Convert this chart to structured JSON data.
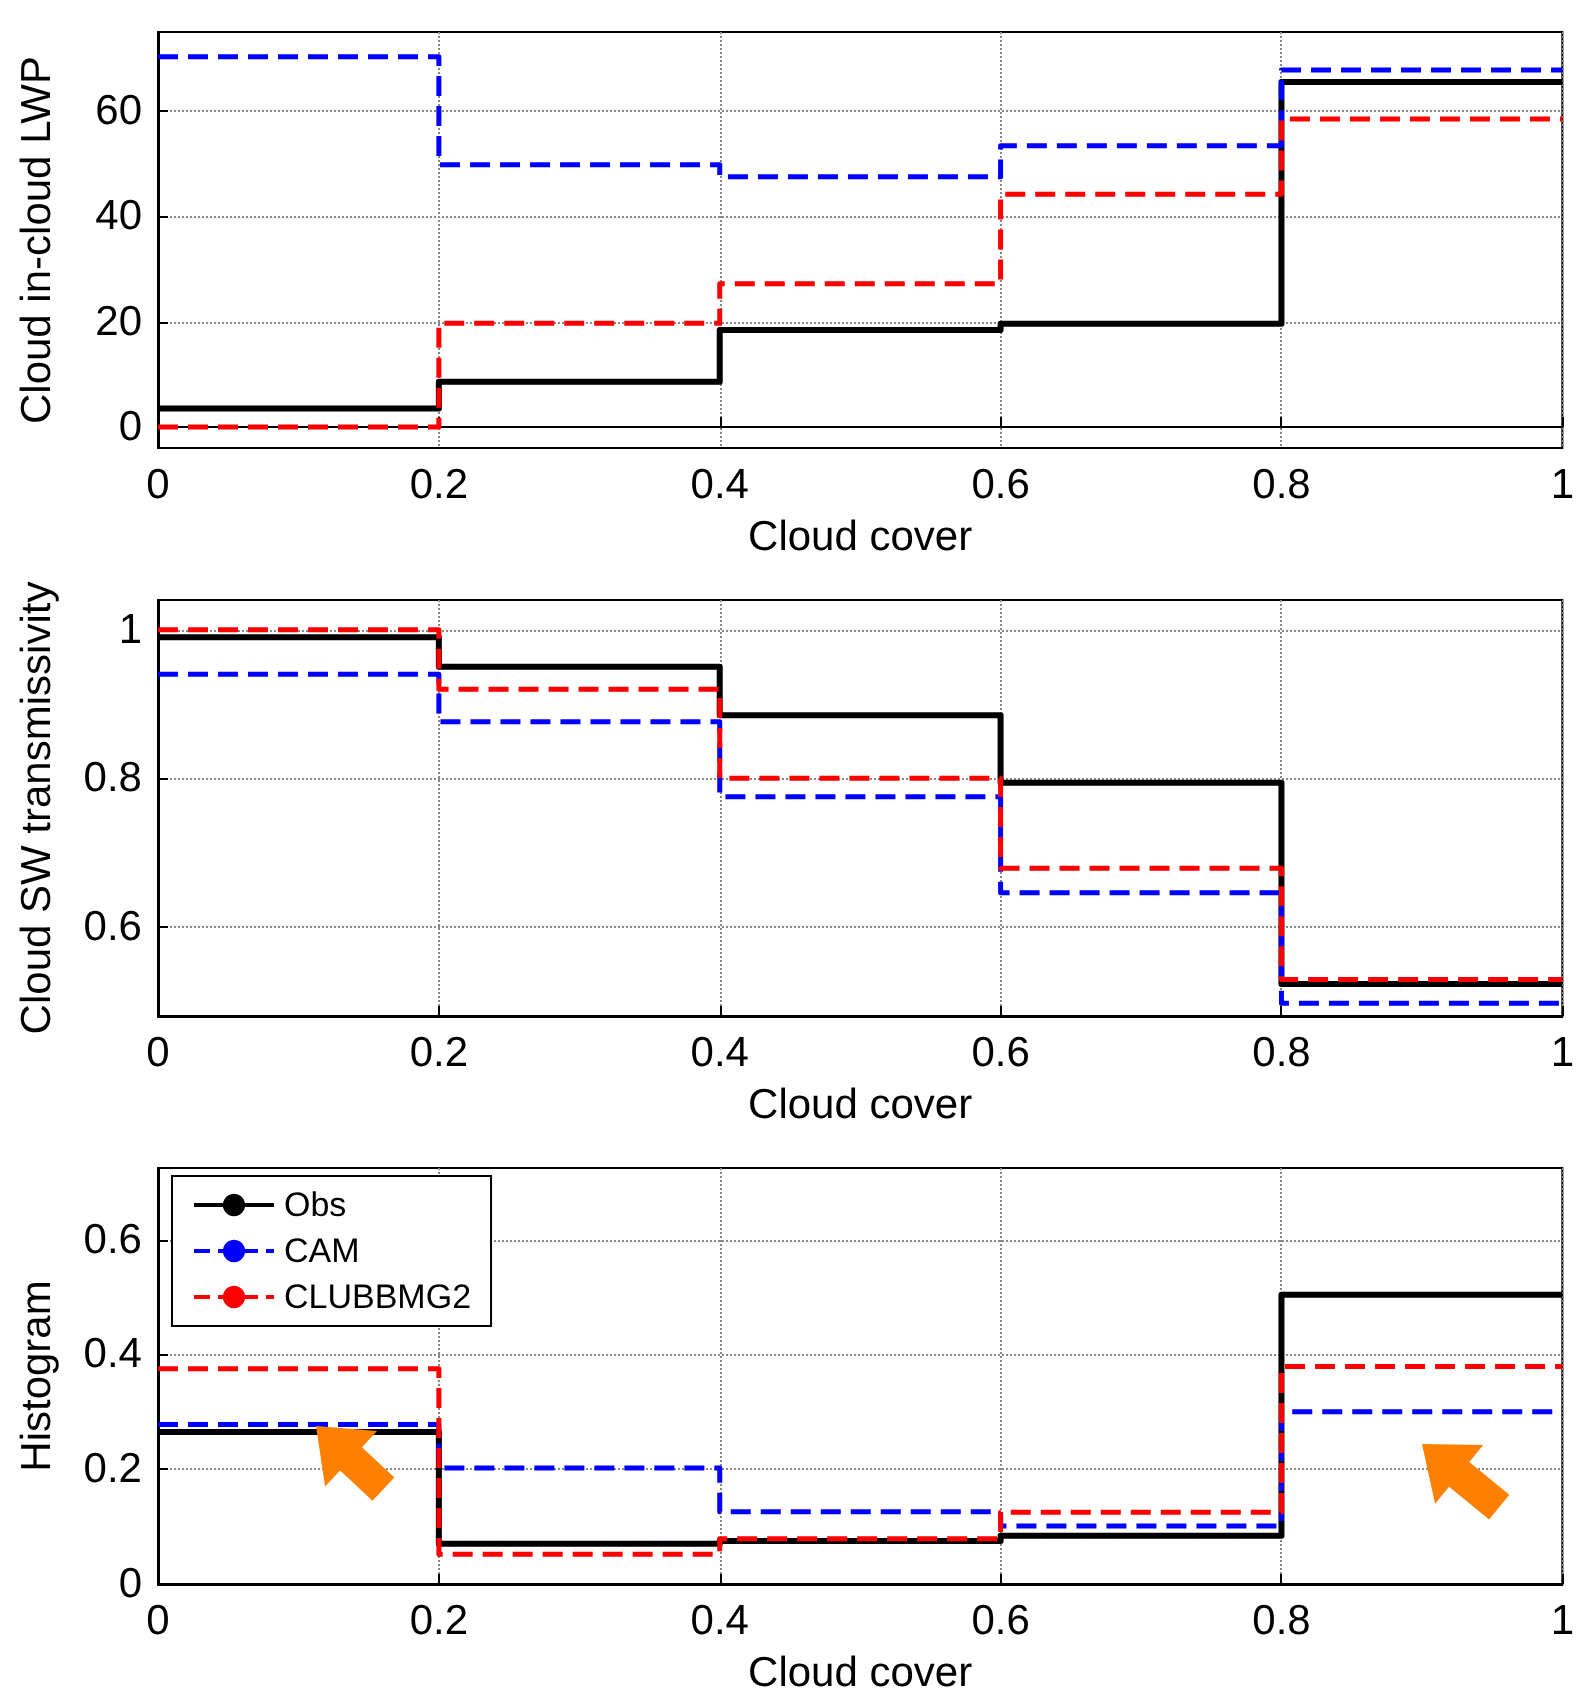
{
  "chart_data": [
    {
      "type": "step",
      "x": [
        0,
        0.2,
        0.4,
        0.6,
        0.8,
        1
      ],
      "xlabel": "Cloud cover",
      "ylabel": "Cloud in-cloud LWP",
      "xlim": [
        0,
        1
      ],
      "xticks": [
        0,
        0.2,
        0.4,
        0.6,
        0.8,
        1
      ],
      "ylim": [
        -4,
        75
      ],
      "yticks": [
        0,
        20,
        40,
        60
      ],
      "grid": true,
      "series": [
        {
          "color": "#000000",
          "line_style": "solid",
          "values": [
            3.5,
            8.6,
            18.4,
            19.6,
            65.5,
            65.5
          ]
        },
        {
          "color": "#0000ff",
          "line_style": "dashed",
          "values": [
            70.3,
            49.8,
            47.5,
            53.4,
            67.8,
            67.8
          ]
        },
        {
          "color": "#ff0000",
          "line_style": "dashed",
          "values": [
            0,
            19.7,
            27.2,
            44.2,
            58.5,
            58.5
          ]
        }
      ]
    },
    {
      "type": "step",
      "x": [
        0,
        0.2,
        0.4,
        0.6,
        0.8,
        1
      ],
      "xlabel": "Cloud cover",
      "ylabel": "Cloud SW transmissivity",
      "xlim": [
        0,
        1
      ],
      "xticks": [
        0,
        0.2,
        0.4,
        0.6,
        0.8,
        1
      ],
      "ylim": [
        0.48,
        1.04
      ],
      "yticks": [
        0.6,
        0.8,
        1
      ],
      "grid": true,
      "series": [
        {
          "color": "#000000",
          "line_style": "solid",
          "values": [
            0.99,
            0.95,
            0.885,
            0.794,
            0.523,
            0.523
          ]
        },
        {
          "color": "#0000ff",
          "line_style": "dashed",
          "values": [
            0.94,
            0.876,
            0.775,
            0.646,
            0.497,
            0.497
          ]
        },
        {
          "color": "#ff0000",
          "line_style": "dashed",
          "values": [
            1.0,
            0.92,
            0.8,
            0.679,
            0.529,
            0.529
          ]
        }
      ]
    },
    {
      "type": "step",
      "x": [
        0,
        0.2,
        0.4,
        0.6,
        0.8,
        1
      ],
      "xlabel": "Cloud cover",
      "ylabel": "Histogram",
      "xlim": [
        0,
        1
      ],
      "xticks": [
        0,
        0.2,
        0.4,
        0.6,
        0.8,
        1
      ],
      "ylim": [
        0,
        0.725
      ],
      "yticks": [
        0,
        0.2,
        0.4,
        0.6
      ],
      "grid": true,
      "legend": "top left",
      "series": [
        {
          "name": "Obs",
          "color": "#000000",
          "line_style": "solid",
          "values": [
            0.265,
            0.07,
            0.075,
            0.084,
            0.504,
            0.504
          ]
        },
        {
          "name": "CAM",
          "color": "#0000ff",
          "line_style": "dashed",
          "values": [
            0.278,
            0.202,
            0.126,
            0.101,
            0.3,
            0.3
          ]
        },
        {
          "name": "CLUBBMG2",
          "color": "#ff0000",
          "line_style": "dashed",
          "values": [
            0.375,
            0.052,
            0.079,
            0.125,
            0.379,
            0.379
          ]
        }
      ]
    }
  ]
}
